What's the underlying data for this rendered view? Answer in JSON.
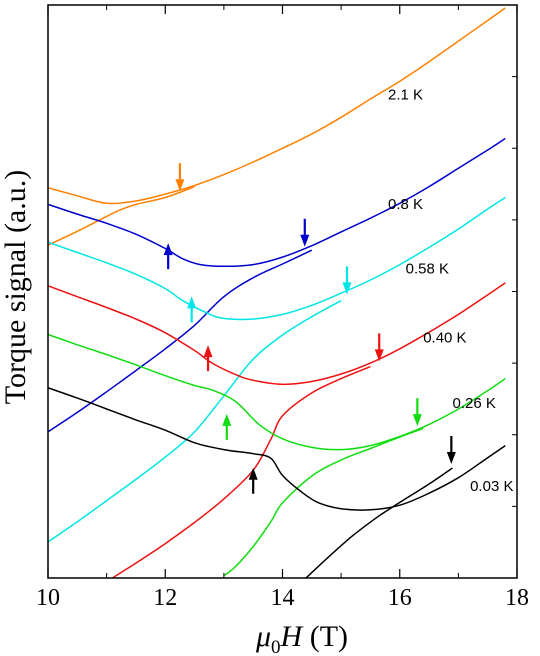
{
  "chart_data": {
    "type": "line",
    "xlabel": "μ0H (T)",
    "xlabel_main": "μ",
    "xlabel_sub": "0",
    "xlabel_rest": "H (T)",
    "ylabel": "Torque signal (a.u.)",
    "xlim": [
      10,
      18
    ],
    "ylim": [
      0,
      1
    ],
    "x_ticks": [
      10,
      12,
      14,
      16,
      18
    ],
    "x_tick_labels": [
      "10",
      "12",
      "14",
      "16",
      "18"
    ],
    "grid": false,
    "legend": "none",
    "series": [
      {
        "name": "2.1 K",
        "color": "#ff8000",
        "label_at": [
          15.8,
          0.835
        ],
        "branch_a": [
          [
            10.0,
            0.681
          ],
          [
            10.5,
            0.667
          ],
          [
            11.0,
            0.654
          ],
          [
            11.5,
            0.658
          ],
          [
            12.0,
            0.67
          ],
          [
            12.5,
            0.685
          ],
          [
            13.0,
            0.704
          ],
          [
            13.5,
            0.726
          ],
          [
            14.0,
            0.75
          ],
          [
            14.5,
            0.775
          ],
          [
            15.0,
            0.804
          ],
          [
            15.5,
            0.836
          ],
          [
            16.0,
            0.867
          ],
          [
            16.5,
            0.901
          ],
          [
            17.0,
            0.937
          ],
          [
            17.5,
            0.973
          ],
          [
            17.8,
            0.995
          ]
        ],
        "branch_b": [
          [
            10.0,
            0.581
          ],
          [
            10.5,
            0.605
          ],
          [
            11.0,
            0.631
          ],
          [
            11.2,
            0.641
          ],
          [
            11.5,
            0.652
          ],
          [
            12.0,
            0.664
          ],
          [
            12.5,
            0.683
          ]
        ],
        "arrows": [
          {
            "x": 12.25,
            "y": 0.675,
            "dir": "down"
          }
        ]
      },
      {
        "name": "0.8 K",
        "color": "#0000cd",
        "label_at": [
          15.8,
          0.644
        ],
        "branch_a": [
          [
            10.0,
            0.652
          ],
          [
            10.5,
            0.635
          ],
          [
            11.0,
            0.619
          ],
          [
            11.5,
            0.6
          ],
          [
            12.0,
            0.575
          ],
          [
            12.3,
            0.557
          ],
          [
            12.6,
            0.547
          ],
          [
            13.0,
            0.544
          ],
          [
            13.5,
            0.547
          ],
          [
            14.0,
            0.56
          ],
          [
            14.5,
            0.58
          ],
          [
            15.0,
            0.604
          ],
          [
            15.5,
            0.628
          ],
          [
            16.0,
            0.654
          ],
          [
            16.5,
            0.683
          ],
          [
            17.0,
            0.715
          ],
          [
            17.5,
            0.747
          ],
          [
            17.8,
            0.767
          ]
        ],
        "branch_b": [
          [
            10.0,
            0.255
          ],
          [
            10.5,
            0.289
          ],
          [
            11.0,
            0.325
          ],
          [
            11.5,
            0.362
          ],
          [
            12.0,
            0.4
          ],
          [
            12.5,
            0.441
          ],
          [
            13.0,
            0.491
          ],
          [
            13.5,
            0.524
          ],
          [
            14.0,
            0.548
          ],
          [
            14.5,
            0.572
          ]
        ],
        "arrows": [
          {
            "x": 12.05,
            "y": 0.56,
            "dir": "up"
          },
          {
            "x": 14.38,
            "y": 0.578,
            "dir": "down"
          }
        ]
      },
      {
        "name": "0.58 K",
        "color": "#00e5e5",
        "label_at": [
          16.1,
          0.531
        ],
        "branch_a": [
          [
            10.0,
            0.586
          ],
          [
            10.5,
            0.568
          ],
          [
            11.0,
            0.55
          ],
          [
            11.5,
            0.53
          ],
          [
            12.0,
            0.505
          ],
          [
            12.3,
            0.484
          ],
          [
            12.7,
            0.463
          ],
          [
            13.0,
            0.453
          ],
          [
            13.5,
            0.452
          ],
          [
            14.0,
            0.46
          ],
          [
            14.5,
            0.476
          ],
          [
            15.0,
            0.497
          ],
          [
            15.5,
            0.52
          ],
          [
            16.0,
            0.547
          ],
          [
            16.5,
            0.577
          ],
          [
            17.0,
            0.609
          ],
          [
            17.5,
            0.644
          ],
          [
            17.8,
            0.664
          ]
        ],
        "branch_b": [
          [
            10.0,
            0.063
          ],
          [
            10.5,
            0.098
          ],
          [
            11.0,
            0.135
          ],
          [
            11.5,
            0.172
          ],
          [
            12.0,
            0.211
          ],
          [
            12.5,
            0.255
          ],
          [
            13.0,
            0.318
          ],
          [
            13.5,
            0.382
          ],
          [
            14.0,
            0.424
          ],
          [
            14.5,
            0.456
          ],
          [
            15.0,
            0.484
          ]
        ],
        "arrows": [
          {
            "x": 12.45,
            "y": 0.467,
            "dir": "up"
          },
          {
            "x": 15.1,
            "y": 0.495,
            "dir": "down"
          }
        ]
      },
      {
        "name": "0.40 K",
        "color": "#ee1111",
        "label_at": [
          16.4,
          0.411
        ],
        "branch_a": [
          [
            10.0,
            0.51
          ],
          [
            10.5,
            0.491
          ],
          [
            11.0,
            0.472
          ],
          [
            11.5,
            0.452
          ],
          [
            12.0,
            0.428
          ],
          [
            12.5,
            0.397
          ],
          [
            12.8,
            0.375
          ],
          [
            13.2,
            0.355
          ],
          [
            13.5,
            0.345
          ],
          [
            14.0,
            0.338
          ],
          [
            14.5,
            0.343
          ],
          [
            15.0,
            0.356
          ],
          [
            15.5,
            0.375
          ],
          [
            16.0,
            0.4
          ],
          [
            16.5,
            0.429
          ],
          [
            17.0,
            0.46
          ],
          [
            17.5,
            0.494
          ],
          [
            17.8,
            0.515
          ]
        ],
        "branch_b": [
          [
            11.1,
            0.0
          ],
          [
            11.5,
            0.026
          ],
          [
            12.0,
            0.06
          ],
          [
            12.5,
            0.097
          ],
          [
            13.0,
            0.138
          ],
          [
            13.5,
            0.188
          ],
          [
            13.8,
            0.242
          ],
          [
            14.0,
            0.283
          ],
          [
            14.5,
            0.323
          ],
          [
            15.0,
            0.348
          ],
          [
            15.5,
            0.369
          ]
        ],
        "arrows": [
          {
            "x": 12.73,
            "y": 0.382,
            "dir": "up"
          },
          {
            "x": 15.65,
            "y": 0.378,
            "dir": "down"
          }
        ]
      },
      {
        "name": "0.26 K",
        "color": "#11dd11",
        "label_at": [
          16.9,
          0.297
        ],
        "branch_a": [
          [
            10.0,
            0.425
          ],
          [
            10.5,
            0.407
          ],
          [
            11.0,
            0.39
          ],
          [
            11.5,
            0.372
          ],
          [
            12.0,
            0.353
          ],
          [
            12.5,
            0.336
          ],
          [
            12.8,
            0.328
          ],
          [
            13.2,
            0.308
          ],
          [
            13.6,
            0.268
          ],
          [
            14.0,
            0.243
          ],
          [
            14.5,
            0.228
          ],
          [
            15.0,
            0.224
          ],
          [
            15.5,
            0.231
          ],
          [
            16.0,
            0.247
          ],
          [
            16.5,
            0.268
          ],
          [
            17.0,
            0.295
          ],
          [
            17.5,
            0.327
          ],
          [
            17.8,
            0.348
          ]
        ],
        "branch_b": [
          [
            13.0,
            0.004
          ],
          [
            13.2,
            0.02
          ],
          [
            13.5,
            0.055
          ],
          [
            13.8,
            0.098
          ],
          [
            14.0,
            0.131
          ],
          [
            14.5,
            0.178
          ],
          [
            15.0,
            0.206
          ],
          [
            15.5,
            0.226
          ],
          [
            16.0,
            0.246
          ],
          [
            16.4,
            0.261
          ]
        ],
        "arrows": [
          {
            "x": 13.05,
            "y": 0.262,
            "dir": "up"
          },
          {
            "x": 16.3,
            "y": 0.265,
            "dir": "down"
          }
        ]
      },
      {
        "name": "0.03 K",
        "color": "#000000",
        "label_at": [
          17.2,
          0.152
        ],
        "branch_a": [
          [
            10.0,
            0.332
          ],
          [
            10.5,
            0.314
          ],
          [
            11.0,
            0.295
          ],
          [
            11.5,
            0.276
          ],
          [
            12.0,
            0.258
          ],
          [
            12.5,
            0.236
          ],
          [
            13.0,
            0.224
          ],
          [
            13.5,
            0.217
          ],
          [
            13.8,
            0.209
          ],
          [
            14.0,
            0.179
          ],
          [
            14.3,
            0.152
          ],
          [
            14.6,
            0.132
          ],
          [
            15.0,
            0.121
          ],
          [
            15.5,
            0.119
          ],
          [
            16.0,
            0.127
          ],
          [
            16.5,
            0.148
          ],
          [
            17.0,
            0.175
          ],
          [
            17.5,
            0.21
          ],
          [
            17.8,
            0.231
          ]
        ],
        "branch_b": [
          [
            14.4,
            0.0
          ],
          [
            14.8,
            0.038
          ],
          [
            15.2,
            0.074
          ],
          [
            15.6,
            0.105
          ],
          [
            16.0,
            0.132
          ],
          [
            16.5,
            0.164
          ],
          [
            16.9,
            0.192
          ]
        ],
        "arrows": [
          {
            "x": 13.5,
            "y": 0.168,
            "dir": "up"
          },
          {
            "x": 16.88,
            "y": 0.199,
            "dir": "down"
          }
        ]
      }
    ]
  }
}
